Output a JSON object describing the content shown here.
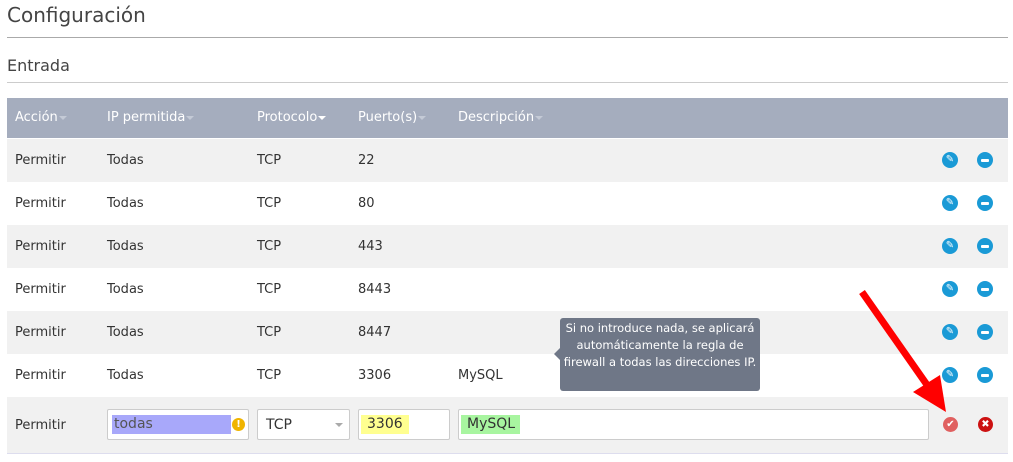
{
  "title": "Configuración",
  "section": "Entrada",
  "columns": [
    "Acción",
    "IP permitida",
    "Protocolo",
    "Puerto(s)",
    "Descripción"
  ],
  "rows": [
    {
      "action": "Permitir",
      "ip": "Todas",
      "protocol": "TCP",
      "ports": "22",
      "description": ""
    },
    {
      "action": "Permitir",
      "ip": "Todas",
      "protocol": "TCP",
      "ports": "80",
      "description": ""
    },
    {
      "action": "Permitir",
      "ip": "Todas",
      "protocol": "TCP",
      "ports": "443",
      "description": ""
    },
    {
      "action": "Permitir",
      "ip": "Todas",
      "protocol": "TCP",
      "ports": "8443",
      "description": ""
    },
    {
      "action": "Permitir",
      "ip": "Todas",
      "protocol": "TCP",
      "ports": "8447",
      "description": ""
    },
    {
      "action": "Permitir",
      "ip": "Todas",
      "protocol": "TCP",
      "ports": "3306",
      "description": "MySQL"
    }
  ],
  "edit_row": {
    "action": "Permitir",
    "ip": "todas",
    "protocol": "TCP",
    "ports": "3306",
    "description": "MySQL"
  },
  "tooltip": "Si no introduce nada, se aplicará automáticamente la regla de firewall a todas las direcciones IP.",
  "colors": {
    "header": "#a5adbe",
    "icon_blue": "#1a9ad6",
    "confirm": "#e06060",
    "cancel": "#cc1111",
    "arrow": "#ff0000"
  }
}
